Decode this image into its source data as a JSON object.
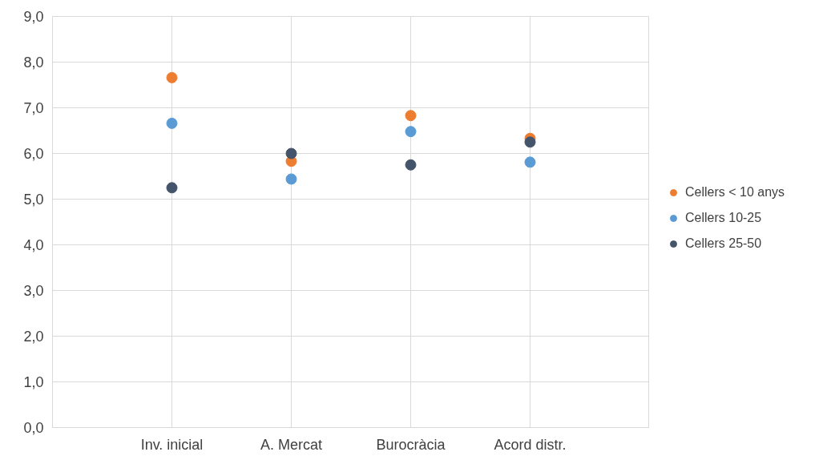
{
  "chart_data": {
    "type": "scatter",
    "categories": [
      "Inv. inicial",
      "A. Mercat",
      "Burocràcia",
      "Acord distr."
    ],
    "series": [
      {
        "name": "Cellers < 10 anys",
        "color": "#ed7d31",
        "values": [
          7.66,
          5.83,
          6.83,
          6.33
        ]
      },
      {
        "name": "Cellers 10-25",
        "color": "#5b9bd5",
        "values": [
          6.66,
          5.44,
          6.48,
          5.81
        ]
      },
      {
        "name": "Cellers 25-50",
        "color": "#44546a",
        "values": [
          5.25,
          6.0,
          5.75,
          6.25
        ]
      }
    ],
    "ylim": [
      0,
      9
    ],
    "yticks": [
      {
        "value": 0,
        "label": "0,0"
      },
      {
        "value": 1,
        "label": "1,0"
      },
      {
        "value": 2,
        "label": "2,0"
      },
      {
        "value": 3,
        "label": "3,0"
      },
      {
        "value": 4,
        "label": "4,0"
      },
      {
        "value": 5,
        "label": "5,0"
      },
      {
        "value": 6,
        "label": "6,0"
      },
      {
        "value": 7,
        "label": "7,0"
      },
      {
        "value": 8,
        "label": "8,0"
      },
      {
        "value": 9,
        "label": "9,0"
      }
    ],
    "grid": true,
    "legend": "right",
    "marker": "circle"
  }
}
